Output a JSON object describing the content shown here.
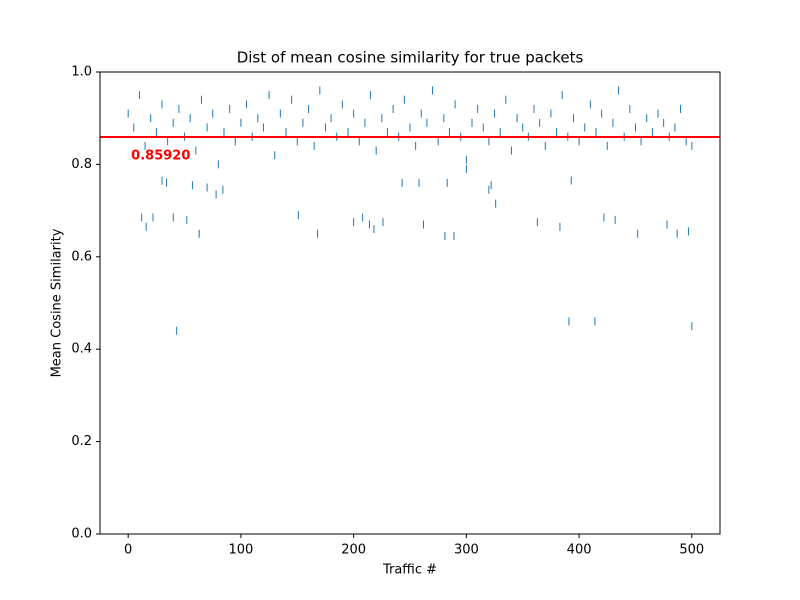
{
  "chart_data": {
    "type": "scatter",
    "title": "Dist of mean cosine similarity for true packets",
    "x_label": "Traffic #",
    "y_label": "Mean Cosine Similarity",
    "xlim": [
      -25,
      525
    ],
    "ylim": [
      0,
      1
    ],
    "xticks": [
      0,
      100,
      200,
      300,
      400,
      500
    ],
    "yticks": [
      {
        "value": 0,
        "label": "0.0"
      },
      0.2,
      0.4,
      0.6,
      0.8,
      {
        "value": 1,
        "label": "1.0"
      }
    ],
    "marker_color": "#1f77b4",
    "hline": {
      "value": 0.8592,
      "label": "0.85920",
      "color": "#ff0000"
    },
    "x": [
      0,
      5,
      10,
      15,
      20,
      25,
      30,
      35,
      40,
      45,
      50,
      55,
      60,
      65,
      70,
      75,
      80,
      85,
      90,
      95,
      100,
      105,
      110,
      115,
      120,
      125,
      130,
      135,
      140,
      145,
      150,
      155,
      160,
      165,
      170,
      175,
      180,
      185,
      190,
      195,
      200,
      205,
      210,
      215,
      220,
      225,
      230,
      235,
      240,
      245,
      250,
      255,
      260,
      265,
      270,
      275,
      280,
      285,
      290,
      295,
      300,
      305,
      310,
      315,
      320,
      325,
      330,
      335,
      340,
      345,
      350,
      355,
      360,
      365,
      370,
      375,
      380,
      385,
      390,
      395,
      400,
      405,
      410,
      415,
      420,
      425,
      430,
      435,
      440,
      445,
      450,
      455,
      460,
      465,
      470,
      475,
      480,
      485,
      490,
      495,
      500,
      12,
      16,
      22,
      40,
      43,
      52,
      63,
      151,
      168,
      200,
      208,
      214,
      218,
      226,
      262,
      281,
      289,
      363,
      383,
      391,
      414,
      422,
      432,
      452,
      478,
      487,
      497,
      500,
      70,
      78,
      84,
      57,
      30,
      34,
      320,
      326,
      393,
      243,
      258,
      283,
      322,
      300
    ],
    "y": [
      0.91,
      0.88,
      0.95,
      0.84,
      0.9,
      0.87,
      0.93,
      0.85,
      0.89,
      0.92,
      0.86,
      0.9,
      0.83,
      0.94,
      0.88,
      0.91,
      0.8,
      0.87,
      0.92,
      0.85,
      0.89,
      0.93,
      0.86,
      0.9,
      0.88,
      0.95,
      0.82,
      0.91,
      0.87,
      0.94,
      0.85,
      0.89,
      0.92,
      0.84,
      0.96,
      0.88,
      0.9,
      0.86,
      0.93,
      0.87,
      0.91,
      0.85,
      0.89,
      0.95,
      0.83,
      0.9,
      0.87,
      0.92,
      0.86,
      0.94,
      0.88,
      0.84,
      0.91,
      0.89,
      0.96,
      0.85,
      0.9,
      0.87,
      0.93,
      0.86,
      0.81,
      0.89,
      0.92,
      0.88,
      0.85,
      0.91,
      0.87,
      0.94,
      0.83,
      0.9,
      0.88,
      0.86,
      0.92,
      0.89,
      0.84,
      0.91,
      0.87,
      0.95,
      0.86,
      0.9,
      0.85,
      0.88,
      0.93,
      0.87,
      0.91,
      0.84,
      0.89,
      0.96,
      0.86,
      0.92,
      0.88,
      0.85,
      0.9,
      0.87,
      0.91,
      0.89,
      0.86,
      0.88,
      0.92,
      0.85,
      0.84,
      0.685,
      0.665,
      0.685,
      0.685,
      0.44,
      0.68,
      0.65,
      0.69,
      0.65,
      0.675,
      0.685,
      0.67,
      0.66,
      0.675,
      0.67,
      0.645,
      0.645,
      0.675,
      0.665,
      0.46,
      0.46,
      0.685,
      0.68,
      0.65,
      0.67,
      0.65,
      0.655,
      0.45,
      0.75,
      0.735,
      0.745,
      0.755,
      0.765,
      0.76,
      0.745,
      0.715,
      0.765,
      0.76,
      0.76,
      0.76,
      0.755,
      0.79
    ]
  }
}
